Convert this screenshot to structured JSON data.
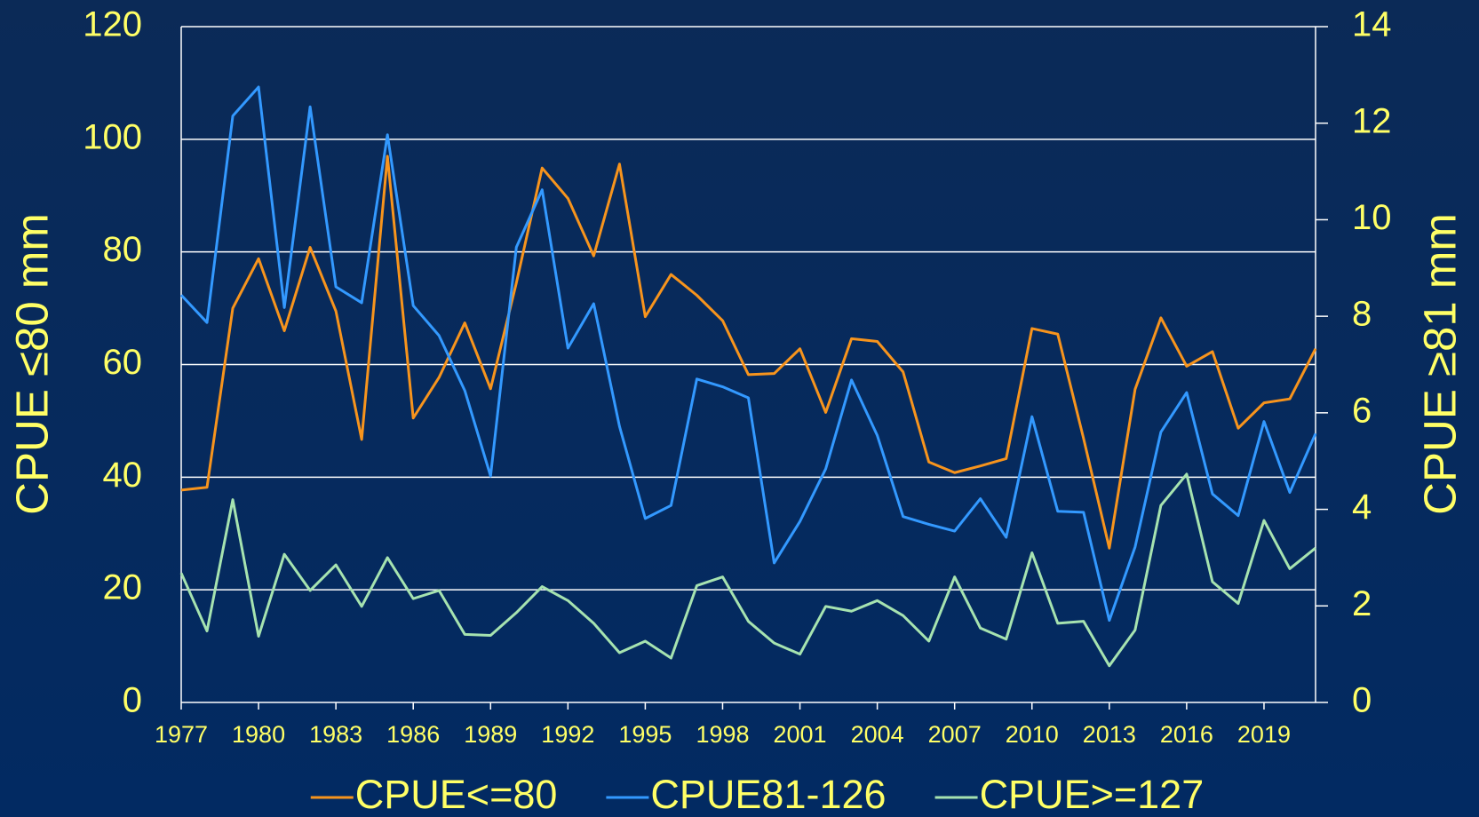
{
  "chart_data": {
    "type": "line",
    "y_label": "CPUE ≤80 mm",
    "y2_label": "CPUE ≥81 mm",
    "x": [
      1977,
      1978,
      1979,
      1980,
      1981,
      1982,
      1983,
      1984,
      1985,
      1986,
      1987,
      1988,
      1989,
      1990,
      1991,
      1992,
      1993,
      1994,
      1995,
      1996,
      1997,
      1998,
      1999,
      2000,
      2001,
      2002,
      2003,
      2004,
      2005,
      2006,
      2007,
      2008,
      2009,
      2010,
      2011,
      2012,
      2013,
      2014,
      2015,
      2016,
      2017,
      2018,
      2019,
      2020,
      2021
    ],
    "xlim": [
      1977,
      2021
    ],
    "xticks": [
      1977,
      1980,
      1983,
      1986,
      1989,
      1992,
      1995,
      1998,
      2001,
      2004,
      2007,
      2010,
      2013,
      2016,
      2019
    ],
    "ylim": [
      0,
      120
    ],
    "yticks": [
      0,
      20,
      40,
      60,
      80,
      100,
      120
    ],
    "y2lim": [
      0,
      14
    ],
    "y2ticks": [
      0,
      2,
      4,
      6,
      8,
      10,
      12,
      14
    ],
    "grid": true,
    "legend": "bottom",
    "series": [
      {
        "name": "CPUE<=80",
        "color": "#f7941d",
        "axis": "y",
        "values": [
          37.7,
          38.2,
          70,
          78.8,
          66,
          80.8,
          69.5,
          46.7,
          97,
          50.5,
          57.7,
          67.4,
          55.7,
          74.5,
          94.9,
          89.5,
          79.3,
          95.6,
          68.5,
          76,
          72.3,
          67.8,
          58.2,
          58.4,
          62.8,
          51.5,
          64.6,
          64.1,
          58.7,
          42.7,
          40.8,
          42,
          43.3,
          66.4,
          65.4,
          46.9,
          27.4,
          55.6,
          68.3,
          59.7,
          62.3,
          48.7,
          53.2,
          53.9,
          62.8
        ]
      },
      {
        "name": "CPUE81-126",
        "color": "#3399ff",
        "axis": "y2",
        "values": [
          8.44,
          7.87,
          12.15,
          12.75,
          8.18,
          12.34,
          8.61,
          8.28,
          11.76,
          8.22,
          7.6,
          6.46,
          4.69,
          9.43,
          10.62,
          7.34,
          8.26,
          5.72,
          3.81,
          4.08,
          6.7,
          6.54,
          6.31,
          2.89,
          3.75,
          4.84,
          6.68,
          5.53,
          3.85,
          3.69,
          3.55,
          4.22,
          3.42,
          5.92,
          3.96,
          3.94,
          1.7,
          3.22,
          5.6,
          6.42,
          4.32,
          3.87,
          5.82,
          4.35,
          5.57
        ]
      },
      {
        "name": "CPUE>=127",
        "color": "#a6e3b0",
        "axis": "y2",
        "values": [
          2.68,
          1.48,
          4.2,
          1.37,
          3.07,
          2.32,
          2.85,
          1.99,
          3.0,
          2.15,
          2.32,
          1.41,
          1.39,
          1.86,
          2.4,
          2.11,
          1.64,
          1.03,
          1.27,
          0.92,
          2.42,
          2.6,
          1.68,
          1.23,
          1.0,
          1.99,
          1.89,
          2.11,
          1.8,
          1.27,
          2.6,
          1.54,
          1.31,
          3.1,
          1.64,
          1.68,
          0.76,
          1.5,
          4.08,
          4.73,
          2.5,
          2.05,
          3.77,
          2.77,
          3.2
        ]
      }
    ]
  }
}
